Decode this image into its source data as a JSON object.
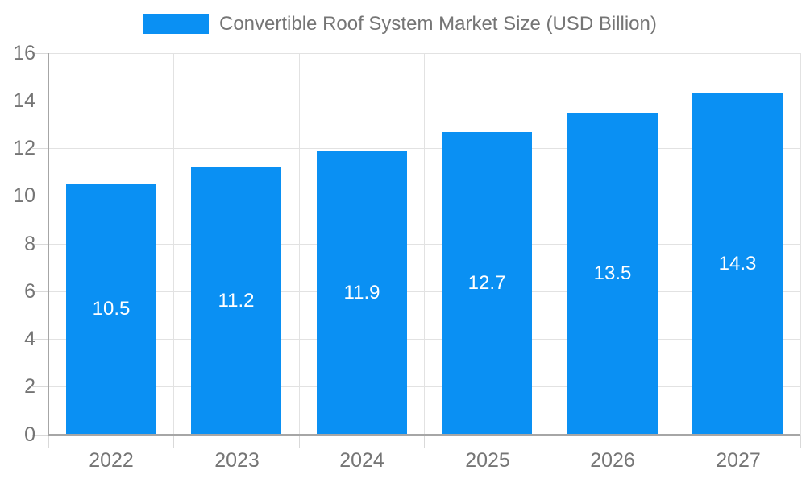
{
  "legend": {
    "label": "Convertible Roof System Market Size (USD Billion)"
  },
  "chart_data": {
    "type": "bar",
    "title": "",
    "xlabel": "",
    "ylabel": "",
    "categories": [
      "2022",
      "2023",
      "2024",
      "2025",
      "2026",
      "2027"
    ],
    "series": [
      {
        "name": "Convertible Roof System Market Size (USD Billion)",
        "values": [
          10.5,
          11.2,
          11.9,
          12.7,
          13.5,
          14.3
        ],
        "value_labels": [
          "10.5",
          "11.2",
          "11.9",
          "12.7",
          "13.5",
          "14.3"
        ]
      }
    ],
    "ylim": [
      0,
      16
    ],
    "yticks": [
      0,
      2,
      4,
      6,
      8,
      10,
      12,
      14,
      16
    ],
    "grid": true,
    "legend_position": "top"
  },
  "colors": {
    "bar": "#0a90f3",
    "grid": "#e2e2e2",
    "tick": "#d9d9d9",
    "axis": "#a6a6a6",
    "text": "#757575",
    "value_label": "#ffffff",
    "background": "#ffffff"
  }
}
